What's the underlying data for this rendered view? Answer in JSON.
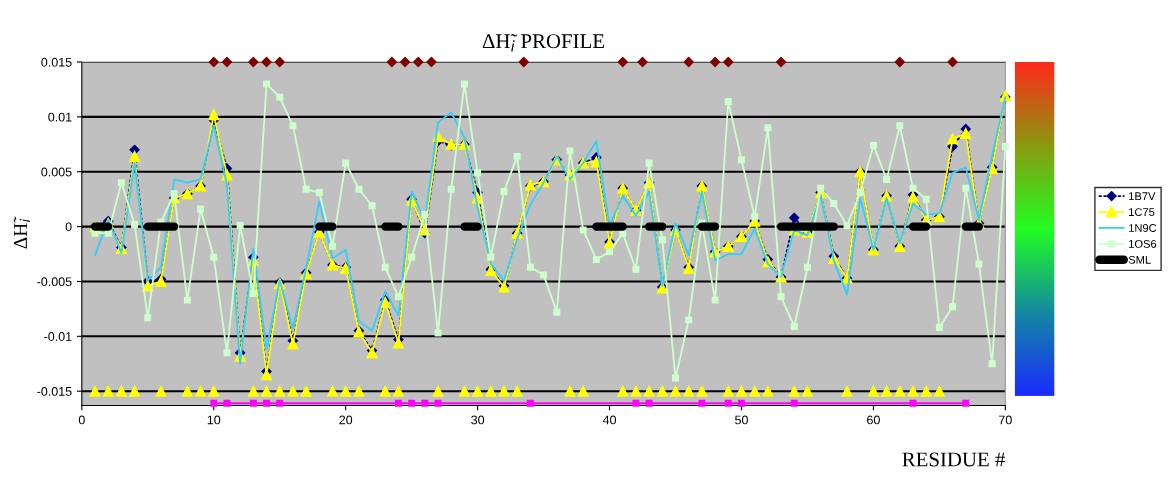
{
  "chart_data": {
    "type": "line",
    "title": "ΔH̃$_{i}$ PROFILE",
    "xlabel": "RESIDUE #",
    "ylabel": "ΔH̃$_{i}$",
    "x": [
      1,
      2,
      3,
      4,
      5,
      6,
      7,
      8,
      9,
      10,
      11,
      12,
      13,
      14,
      15,
      16,
      17,
      18,
      19,
      20,
      21,
      22,
      23,
      24,
      25,
      26,
      27,
      28,
      29,
      30,
      31,
      32,
      33,
      34,
      35,
      36,
      37,
      38,
      39,
      40,
      41,
      42,
      43,
      44,
      45,
      46,
      47,
      48,
      49,
      50,
      51,
      52,
      53,
      54,
      55,
      56,
      57,
      58,
      59,
      60,
      61,
      62,
      63,
      64,
      65,
      66,
      67,
      68,
      69,
      70
    ],
    "series": [
      {
        "name": "1B7V",
        "color": "#000080",
        "marker": "diamond",
        "line_style": "dotted",
        "values": [
          0,
          0.0005,
          -0.0019,
          0.007,
          -0.005,
          -0.0048,
          0.0026,
          0.003,
          0.0037,
          0.0097,
          0.0053,
          -0.0115,
          -0.0028,
          -0.0132,
          -0.0051,
          -0.0104,
          -0.0042,
          -0.0005,
          -0.0035,
          -0.0037,
          -0.0095,
          -0.0113,
          -0.0067,
          -0.0103,
          0.0025,
          -0.0006,
          0.0078,
          0.0074,
          0.0075,
          0.0031,
          -0.0039,
          -0.0054,
          -0.0006,
          0.0037,
          0.0041,
          0.0061,
          0.0047,
          0.0058,
          0.0063,
          -0.0014,
          0.0035,
          0.0015,
          0.004,
          -0.0055,
          -0.0003,
          -0.0037,
          0.0037,
          -0.0023,
          -0.0018,
          -0.0009,
          0.0005,
          -0.003,
          -0.0046,
          0.0008,
          -0.0005,
          0.0031,
          -0.0027,
          -0.0047,
          0.005,
          -0.0021,
          0.0028,
          -0.0018,
          0.0029,
          0.0006,
          0.0009,
          0.0073,
          0.0089,
          0.0003,
          0.0054,
          0.0118
        ]
      },
      {
        "name": "1C75",
        "color": "#ffff00",
        "marker": "triangle",
        "line_style": "solid",
        "values": [
          0,
          0.0003,
          -0.002,
          0.0064,
          -0.0054,
          -0.005,
          0.0026,
          0.003,
          0.0037,
          0.0102,
          0.0047,
          -0.0118,
          -0.0031,
          -0.0135,
          -0.0052,
          -0.0107,
          -0.0043,
          -0.0005,
          -0.0035,
          -0.0038,
          -0.0096,
          -0.0115,
          -0.0069,
          -0.0106,
          0.0024,
          -0.0003,
          0.0082,
          0.0075,
          0.0075,
          0.0026,
          -0.004,
          -0.0055,
          -0.0006,
          0.0038,
          0.0041,
          0.0061,
          0.0047,
          0.0058,
          0.0059,
          -0.0015,
          0.0035,
          0.0015,
          0.004,
          -0.0056,
          -0.0003,
          -0.0038,
          0.0037,
          -0.0023,
          -0.0018,
          -0.0009,
          0.0005,
          -0.0032,
          -0.0046,
          -0.0003,
          -0.0005,
          0.0031,
          -0.0029,
          -0.0047,
          0.005,
          -0.0021,
          0.0028,
          -0.0018,
          0.0027,
          0.0006,
          0.0009,
          0.008,
          0.0085,
          0.0003,
          0.0053,
          0.0119
        ]
      },
      {
        "name": "1N9C",
        "color": "#33ccff",
        "marker": "none",
        "line_style": "solid",
        "values": [
          -0.0026,
          0.0006,
          -0.0024,
          0.0058,
          -0.0049,
          -0.0037,
          0.0043,
          0.004,
          0.0043,
          0.0092,
          0.0038,
          -0.0125,
          -0.002,
          -0.0112,
          -0.0049,
          -0.0093,
          -0.0038,
          0.0023,
          -0.0029,
          -0.0021,
          -0.0086,
          -0.0095,
          -0.0059,
          -0.0081,
          0.0032,
          0.0005,
          0.0095,
          0.0104,
          0.0081,
          0.0017,
          -0.0034,
          -0.0049,
          -0.0011,
          0.002,
          0.004,
          0.0064,
          0.0043,
          0.0058,
          0.0078,
          0.0001,
          0.0028,
          0.001,
          0.0032,
          -0.0054,
          0.0003,
          -0.0026,
          0.0032,
          -0.0031,
          -0.0025,
          -0.0025,
          -0.0002,
          -0.0034,
          -0.0046,
          -0.0003,
          -0.0008,
          0.0029,
          -0.0031,
          -0.0062,
          0.0026,
          -0.0021,
          0.0026,
          -0.0015,
          0.0021,
          0.0011,
          0.0012,
          0.0049,
          0.0054,
          0.0006,
          0.0065,
          0.0118
        ]
      },
      {
        "name": "1OS6",
        "color": "#ccffcc",
        "marker": "square",
        "line_style": "solid",
        "values": [
          -0.0006,
          -0.0006,
          0.004,
          0.0002,
          -0.0083,
          0.0004,
          0.003,
          -0.0067,
          0.0016,
          -0.0028,
          -0.0115,
          0.0001,
          -0.0061,
          0.013,
          0.0118,
          0.0092,
          0.0034,
          0.0031,
          -0.0018,
          0.0058,
          0.0034,
          0.0019,
          -0.0037,
          -0.0064,
          -0.0028,
          0.0011,
          -0.0097,
          0.0034,
          0.013,
          0.0049,
          -0.0028,
          0.0032,
          0.0064,
          -0.0037,
          -0.0044,
          -0.0078,
          0.0069,
          -0.0003,
          -0.003,
          -0.0023,
          -0.0006,
          -0.0039,
          0.0058,
          -0.0012,
          -0.0138,
          -0.0085,
          0.0003,
          -0.0067,
          0.0114,
          0.0061,
          0.0009,
          0.009,
          -0.0064,
          -0.0091,
          -0.0037,
          0.0035,
          0.0021,
          0.0001,
          0.0031,
          0.0074,
          0.0043,
          0.0092,
          0.0035,
          0.0025,
          -0.0092,
          -0.0073,
          0.0035,
          -0.0034,
          -0.0125,
          0.0073
        ]
      },
      {
        "name": "SML",
        "color": "#000000",
        "marker": "none",
        "line_style": "solid",
        "values": [
          0,
          0,
          null,
          null,
          0,
          0,
          0,
          null,
          null,
          null,
          null,
          null,
          null,
          null,
          null,
          null,
          null,
          0,
          0,
          null,
          null,
          null,
          0,
          0,
          null,
          null,
          null,
          null,
          0,
          0,
          null,
          null,
          null,
          null,
          null,
          null,
          null,
          null,
          0,
          0,
          0,
          null,
          0,
          0,
          null,
          null,
          0,
          0,
          null,
          null,
          null,
          null,
          0,
          0,
          0,
          0,
          0,
          null,
          null,
          null,
          null,
          null,
          0,
          0,
          null,
          null,
          0,
          0,
          null,
          null
        ]
      },
      {
        "type": "scatter",
        "color": "#800000",
        "marker": "diamond",
        "x": [
          10,
          11,
          13,
          14,
          15,
          23.5,
          24.5,
          25.5,
          26.5,
          33.5,
          41,
          42.5,
          46,
          48,
          49,
          53,
          62,
          66
        ],
        "values": [
          0.015,
          0.015,
          0.015,
          0.015,
          0.015,
          0.015,
          0.015,
          0.015,
          0.015,
          0.015,
          0.015,
          0.015,
          0.015,
          0.015,
          0.015,
          0.015,
          0.015,
          0.015
        ]
      },
      {
        "type": "scatter",
        "color": "#ffff00",
        "marker": "triangle",
        "x": [
          1,
          2,
          3,
          4,
          6,
          8,
          9,
          10,
          13,
          14,
          15,
          16,
          17,
          19,
          20,
          21,
          23,
          24,
          27,
          29,
          30,
          31,
          32,
          33,
          37,
          38,
          41,
          42,
          43,
          44,
          45,
          46,
          47,
          49,
          50,
          51,
          52,
          54,
          55,
          58,
          60,
          61,
          62,
          63,
          64,
          65
        ],
        "values": [
          -0.015,
          -0.015,
          -0.015,
          -0.015,
          -0.015,
          -0.015,
          -0.015,
          -0.015,
          -0.015,
          -0.015,
          -0.015,
          -0.015,
          -0.015,
          -0.015,
          -0.015,
          -0.015,
          -0.015,
          -0.015,
          -0.015,
          -0.015,
          -0.015,
          -0.015,
          -0.015,
          -0.015,
          -0.015,
          -0.015,
          -0.015,
          -0.015,
          -0.015,
          -0.015,
          -0.015,
          -0.015,
          -0.015,
          -0.015,
          -0.015,
          -0.015,
          -0.015,
          -0.015,
          -0.015,
          -0.015,
          -0.015,
          -0.015,
          -0.015,
          -0.015,
          -0.015,
          -0.015
        ]
      },
      {
        "type": "line",
        "color": "#ff00ff",
        "marker": "square",
        "line_style": "solid",
        "x": [
          10,
          11,
          13,
          14,
          15,
          24,
          25,
          26,
          27,
          34,
          42,
          43,
          47,
          49,
          50,
          54,
          63,
          67
        ],
        "values": [
          -0.0161,
          -0.0161,
          -0.0161,
          -0.0161,
          -0.0161,
          -0.0161,
          -0.0161,
          -0.0161,
          -0.0161,
          -0.0161,
          -0.0161,
          -0.0161,
          -0.0161,
          -0.0161,
          -0.0161,
          -0.0161,
          -0.0161,
          -0.0161
        ]
      }
    ],
    "xlim": [
      0,
      70
    ],
    "xticks": [
      0,
      10,
      20,
      30,
      40,
      50,
      60,
      70
    ],
    "ylim": [
      -0.0163,
      0.015
    ],
    "yticks": [
      -0.015,
      -0.01,
      -0.005,
      0,
      0.005,
      0.01,
      0.015
    ],
    "grid": "y",
    "legend": "right"
  }
}
